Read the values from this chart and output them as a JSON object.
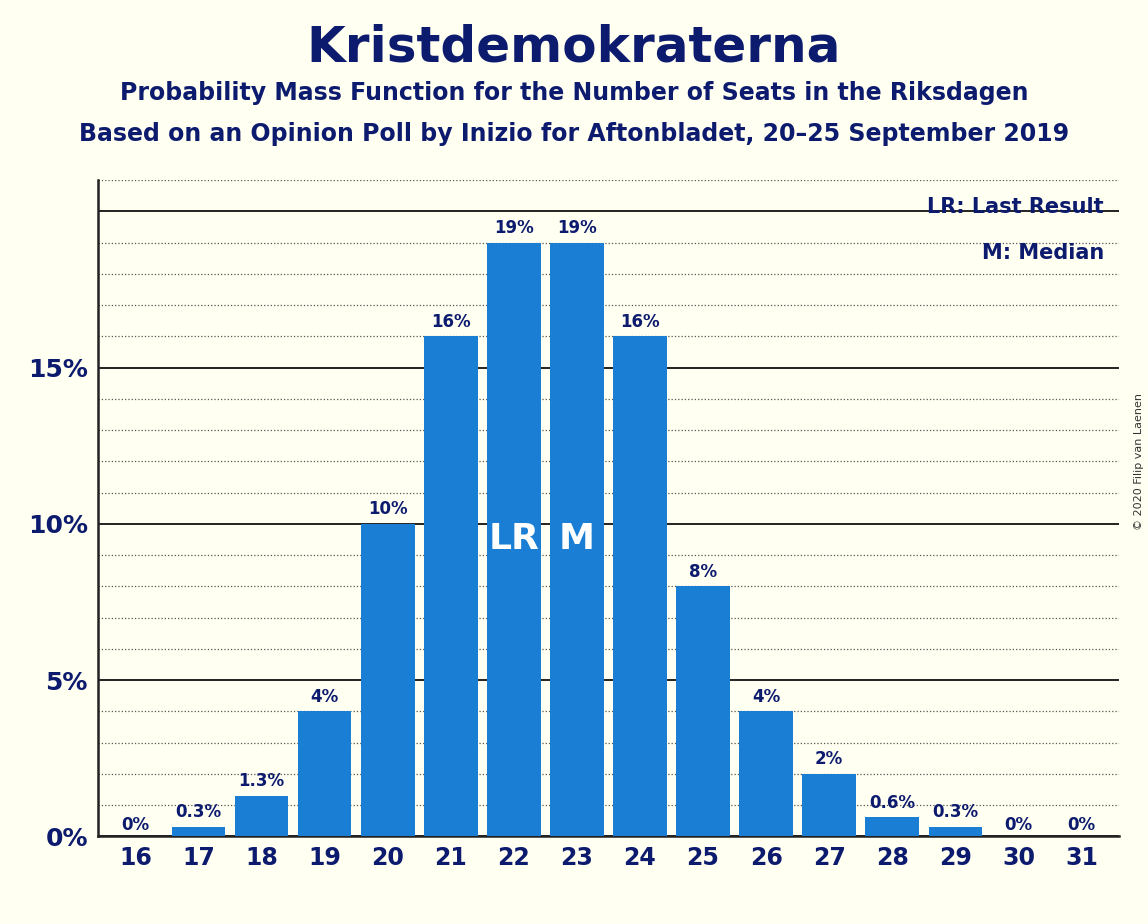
{
  "title": "Kristdemokraterna",
  "subtitle1": "Probability Mass Function for the Number of Seats in the Riksdagen",
  "subtitle2": "Based on an Opinion Poll by Inizio for Aftonbladet, 20–25 September 2019",
  "copyright": "© 2020 Filip van Laenen",
  "categories": [
    16,
    17,
    18,
    19,
    20,
    21,
    22,
    23,
    24,
    25,
    26,
    27,
    28,
    29,
    30,
    31
  ],
  "values": [
    0.0,
    0.3,
    1.3,
    4.0,
    10.0,
    16.0,
    19.0,
    19.0,
    16.0,
    8.0,
    4.0,
    2.0,
    0.6,
    0.3,
    0.0,
    0.0
  ],
  "labels": [
    "0%",
    "0.3%",
    "1.3%",
    "4%",
    "10%",
    "16%",
    "19%",
    "19%",
    "16%",
    "8%",
    "4%",
    "2%",
    "0.6%",
    "0.3%",
    "0%",
    "0%"
  ],
  "bar_color": "#1a7fd4",
  "background_color": "#fffff2",
  "text_color": "#0d1b6e",
  "ylim": [
    0,
    21
  ],
  "lr_seat": 22,
  "median_seat": 23,
  "lr_label": "LR: Last Result",
  "median_label": "M: Median",
  "label_fontsize": 12,
  "title_fontsize": 36,
  "subtitle_fontsize": 17,
  "axis_label_fontsize": 18,
  "tick_fontsize": 17,
  "legend_fontsize": 15,
  "lr_m_fontsize": 26,
  "copyright_fontsize": 8
}
